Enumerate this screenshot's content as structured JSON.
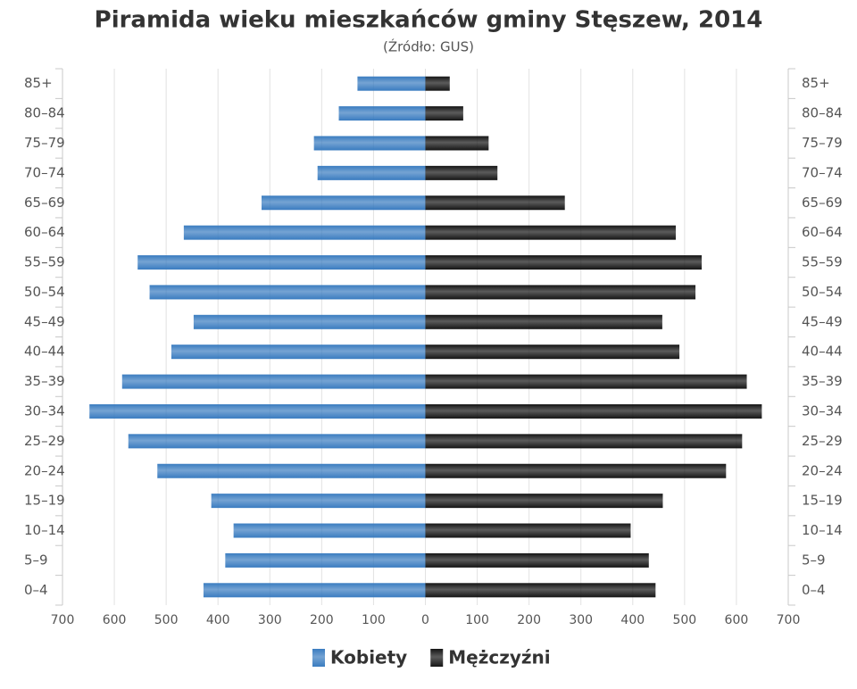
{
  "chart_data": {
    "type": "pyramid",
    "title": "Piramida wieku mieszkańców gminy Stęszew, 2014",
    "subtitle": "(Źródło: GUS)",
    "categories": [
      "85+",
      "80–84",
      "75–79",
      "70–74",
      "65–69",
      "60–64",
      "55–59",
      "50–54",
      "45–49",
      "40–44",
      "35–39",
      "30–34",
      "25–29",
      "20–24",
      "15–19",
      "10–14",
      "5–9",
      "0–4"
    ],
    "series": [
      {
        "name": "Kobiety",
        "color": "#3a7cc0",
        "side": "left",
        "values": [
          131,
          167,
          215,
          208,
          316,
          466,
          555,
          532,
          447,
          490,
          585,
          648,
          573,
          517,
          413,
          370,
          386,
          428
        ]
      },
      {
        "name": "Mężczyźni",
        "color": "#151515",
        "side": "right",
        "values": [
          47,
          73,
          122,
          139,
          269,
          483,
          533,
          521,
          457,
          490,
          620,
          649,
          611,
          580,
          458,
          396,
          431,
          444
        ]
      }
    ],
    "xlim": [
      -700,
      700
    ],
    "xticks": [
      {
        "value": -700,
        "label": "700"
      },
      {
        "value": -600,
        "label": "600"
      },
      {
        "value": -500,
        "label": "500"
      },
      {
        "value": -400,
        "label": "400"
      },
      {
        "value": -300,
        "label": "300"
      },
      {
        "value": -200,
        "label": "200"
      },
      {
        "value": -100,
        "label": "100"
      },
      0,
      100,
      200,
      300,
      400,
      500,
      600,
      700
    ],
    "grid": true,
    "legend": "bottom"
  }
}
